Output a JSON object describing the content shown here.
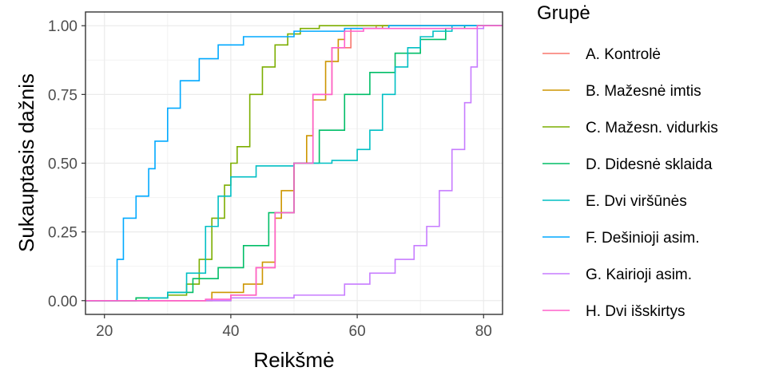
{
  "chart_data": {
    "type": "line",
    "subtype": "empirical cumulative distribution (step)",
    "xlabel": "Reikšmė",
    "ylabel": "Sukauptasis dažnis",
    "xlim": [
      17,
      83
    ],
    "ylim": [
      -0.05,
      1.05
    ],
    "x_ticks": [
      20,
      40,
      60,
      80
    ],
    "y_ticks": [
      0.0,
      0.25,
      0.5,
      0.75,
      1.0
    ],
    "x_tick_labels": [
      "20",
      "40",
      "60",
      "80"
    ],
    "y_tick_labels": [
      "0.00",
      "0.25",
      "0.50",
      "0.75",
      "1.00"
    ],
    "grid": true,
    "legend": {
      "title": "Grupė",
      "position": "right"
    },
    "series": [
      {
        "name": "A. Kontrolė",
        "color": "#F8766D",
        "points": [
          [
            17,
            0
          ],
          [
            36,
            0
          ],
          [
            40,
            0.02
          ],
          [
            44,
            0.12
          ],
          [
            47,
            0.32
          ],
          [
            50,
            0.5
          ],
          [
            53,
            0.75
          ],
          [
            56,
            0.92
          ],
          [
            59,
            0.99
          ],
          [
            63,
            1
          ],
          [
            83,
            1
          ]
        ]
      },
      {
        "name": "B. Mažesnė imtis",
        "color": "#CD9600",
        "points": [
          [
            17,
            0
          ],
          [
            36,
            0
          ],
          [
            37,
            0.03
          ],
          [
            40,
            0.03
          ],
          [
            42,
            0.06
          ],
          [
            45,
            0.14
          ],
          [
            47,
            0.3
          ],
          [
            48,
            0.4
          ],
          [
            50,
            0.5
          ],
          [
            52,
            0.6
          ],
          [
            53,
            0.73
          ],
          [
            55,
            0.87
          ],
          [
            57,
            0.95
          ],
          [
            58,
            0.99
          ],
          [
            64,
            1
          ],
          [
            83,
            1
          ]
        ]
      },
      {
        "name": "C. Mažesn. vidurkis",
        "color": "#7CAE00",
        "points": [
          [
            17,
            0
          ],
          [
            25,
            0.01
          ],
          [
            30,
            0.02
          ],
          [
            33,
            0.06
          ],
          [
            35,
            0.15
          ],
          [
            37,
            0.3
          ],
          [
            39,
            0.42
          ],
          [
            40,
            0.5
          ],
          [
            41,
            0.56
          ],
          [
            43,
            0.75
          ],
          [
            45,
            0.85
          ],
          [
            47,
            0.93
          ],
          [
            49,
            0.97
          ],
          [
            51,
            0.99
          ],
          [
            54,
            1
          ],
          [
            83,
            1
          ]
        ]
      },
      {
        "name": "D. Didesnė sklaida",
        "color": "#00BE67",
        "points": [
          [
            17,
            0
          ],
          [
            25,
            0.01
          ],
          [
            30,
            0.03
          ],
          [
            34,
            0.08
          ],
          [
            38,
            0.12
          ],
          [
            42,
            0.2
          ],
          [
            46,
            0.32
          ],
          [
            50,
            0.5
          ],
          [
            54,
            0.62
          ],
          [
            58,
            0.75
          ],
          [
            62,
            0.83
          ],
          [
            66,
            0.9
          ],
          [
            70,
            0.95
          ],
          [
            74,
            0.99
          ],
          [
            77,
            1
          ],
          [
            83,
            1
          ]
        ]
      },
      {
        "name": "E. Dvi viršūnės",
        "color": "#00BFC4",
        "points": [
          [
            17,
            0
          ],
          [
            27,
            0.01
          ],
          [
            30,
            0.03
          ],
          [
            33,
            0.1
          ],
          [
            36,
            0.27
          ],
          [
            38,
            0.38
          ],
          [
            40,
            0.45
          ],
          [
            44,
            0.49
          ],
          [
            50,
            0.5
          ],
          [
            56,
            0.51
          ],
          [
            60,
            0.55
          ],
          [
            62,
            0.62
          ],
          [
            64,
            0.75
          ],
          [
            66,
            0.85
          ],
          [
            68,
            0.92
          ],
          [
            70,
            0.96
          ],
          [
            72,
            0.98
          ],
          [
            75,
            1
          ],
          [
            83,
            1
          ]
        ]
      },
      {
        "name": "F. Dešinioji asim.",
        "color": "#00A9FF",
        "points": [
          [
            17,
            0
          ],
          [
            21,
            0
          ],
          [
            22,
            0.15
          ],
          [
            23,
            0.3
          ],
          [
            25,
            0.38
          ],
          [
            27,
            0.48
          ],
          [
            28,
            0.58
          ],
          [
            30,
            0.7
          ],
          [
            32,
            0.8
          ],
          [
            35,
            0.88
          ],
          [
            38,
            0.93
          ],
          [
            42,
            0.96
          ],
          [
            50,
            0.98
          ],
          [
            58,
            0.99
          ],
          [
            65,
            1
          ],
          [
            83,
            1
          ]
        ]
      },
      {
        "name": "G. Kairioji asim.",
        "color": "#C77CFF",
        "points": [
          [
            17,
            0
          ],
          [
            40,
            0.01
          ],
          [
            50,
            0.02
          ],
          [
            58,
            0.06
          ],
          [
            62,
            0.1
          ],
          [
            66,
            0.15
          ],
          [
            69,
            0.2
          ],
          [
            71,
            0.27
          ],
          [
            73,
            0.4
          ],
          [
            75,
            0.55
          ],
          [
            77,
            0.72
          ],
          [
            78,
            0.85
          ],
          [
            79,
            0.99
          ],
          [
            80,
            1
          ],
          [
            83,
            1
          ]
        ]
      },
      {
        "name": "H. Dvi išskirtys",
        "color": "#FF61CC",
        "points": [
          [
            17,
            0
          ],
          [
            22,
            0
          ],
          [
            36,
            0.005
          ],
          [
            40,
            0.02
          ],
          [
            44,
            0.12
          ],
          [
            47,
            0.32
          ],
          [
            50,
            0.5
          ],
          [
            53,
            0.75
          ],
          [
            56,
            0.92
          ],
          [
            58,
            0.98
          ],
          [
            61,
            0.99
          ],
          [
            79,
            1
          ],
          [
            83,
            1
          ]
        ]
      }
    ]
  }
}
